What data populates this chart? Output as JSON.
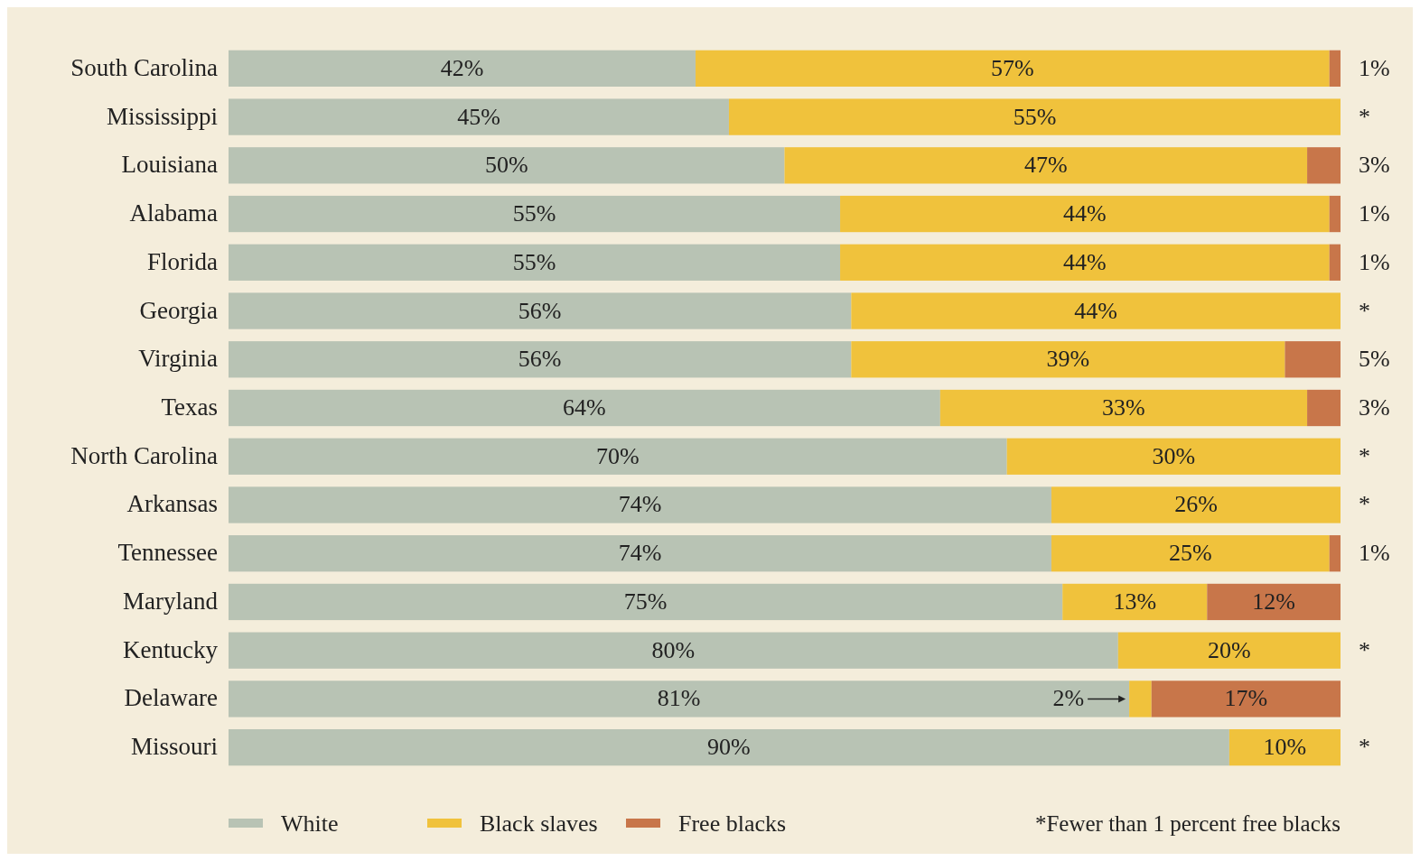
{
  "chart_data": {
    "type": "bar",
    "orientation": "horizontal",
    "stacked": true,
    "xlim": [
      0,
      100
    ],
    "legend": "bottom",
    "categories": [
      "South Carolina",
      "Mississippi",
      "Louisiana",
      "Alabama",
      "Florida",
      "Georgia",
      "Virginia",
      "Texas",
      "North Carolina",
      "Arkansas",
      "Tennessee",
      "Maryland",
      "Kentucky",
      "Delaware",
      "Missouri"
    ],
    "series": [
      {
        "name": "White",
        "color": "#b8c3b4",
        "values": [
          42,
          45,
          50,
          55,
          55,
          56,
          56,
          64,
          70,
          74,
          74,
          75,
          80,
          81,
          90
        ],
        "value_labels": [
          "42%",
          "45%",
          "50%",
          "55%",
          "55%",
          "56%",
          "56%",
          "64%",
          "70%",
          "74%",
          "74%",
          "75%",
          "80%",
          "81%",
          "90%"
        ]
      },
      {
        "name": "Black slaves",
        "color": "#f0c23c",
        "values": [
          57,
          55,
          47,
          44,
          44,
          44,
          39,
          33,
          30,
          26,
          25,
          13,
          20,
          2,
          10
        ],
        "value_labels": [
          "57%",
          "55%",
          "47%",
          "44%",
          "44%",
          "44%",
          "39%",
          "33%",
          "30%",
          "26%",
          "25%",
          "13%",
          "20%",
          "2%",
          "10%"
        ]
      },
      {
        "name": "Free blacks",
        "color": "#c8764a",
        "values": [
          1,
          0,
          3,
          1,
          1,
          0,
          5,
          3,
          0,
          0,
          1,
          12,
          0,
          17,
          0
        ],
        "value_labels": [
          "1%",
          "*",
          "3%",
          "1%",
          "1%",
          "*",
          "5%",
          "3%",
          "*",
          "*",
          "1%",
          "12%",
          "*",
          "17%",
          "*"
        ]
      }
    ],
    "annotations": [
      "*Fewer than 1 percent free blacks"
    ]
  }
}
